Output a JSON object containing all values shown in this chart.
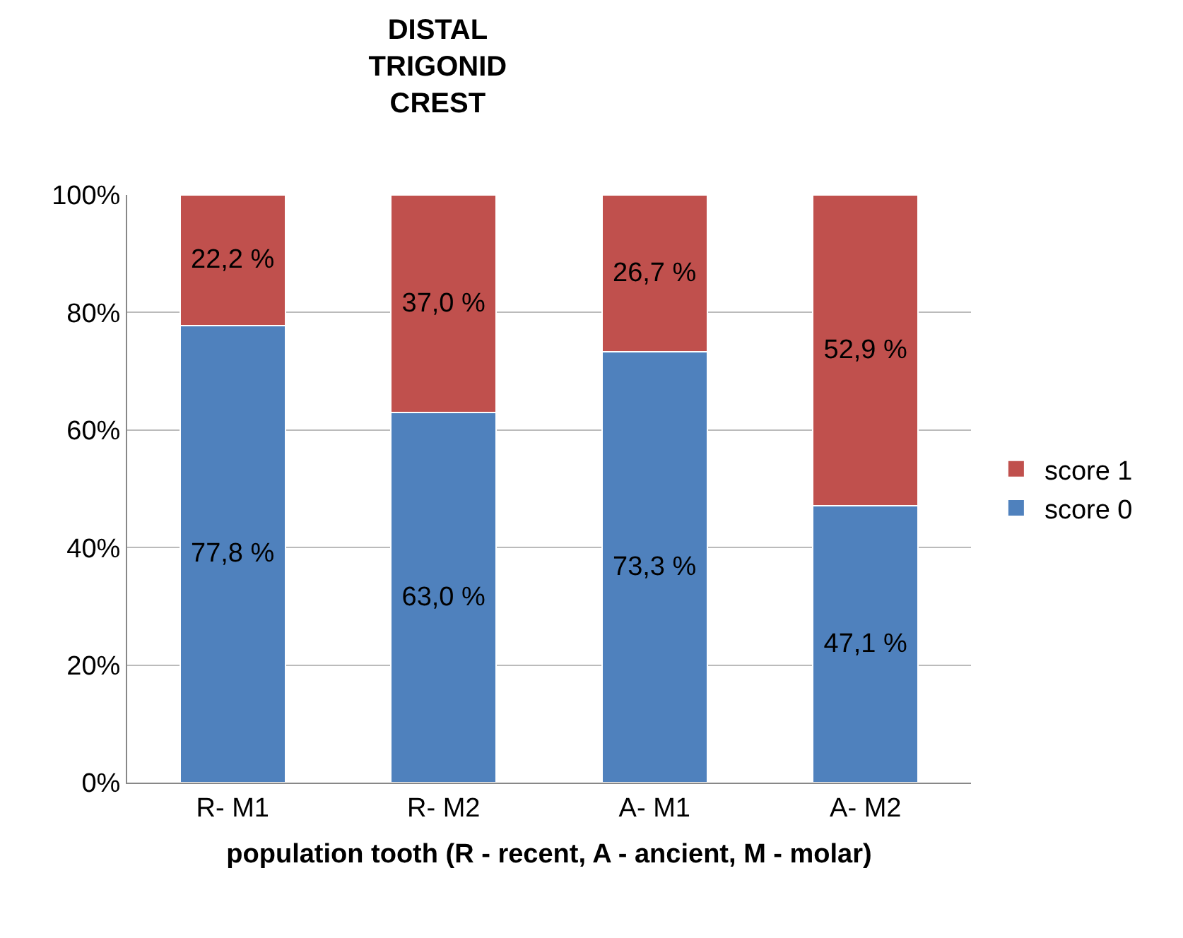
{
  "chart_data": {
    "type": "bar",
    "title": "DISTAL\nTRIGONID\nCREST",
    "xlabel": "population tooth (R - recent, A - ancient, M - molar)",
    "categories": [
      "R- M1",
      "R- M2",
      "A- M1",
      "A- M2"
    ],
    "stacked": true,
    "series": [
      {
        "name": "score 0",
        "color": "#4f81bd",
        "values": [
          77.8,
          63.0,
          73.3,
          47.1
        ],
        "value_labels": [
          "77,8 %",
          "63,0 %",
          "73,3 %",
          "47,1 %"
        ]
      },
      {
        "name": "score 1",
        "color": "#c0504d",
        "values": [
          22.2,
          37.0,
          26.7,
          52.9
        ],
        "value_labels": [
          "22,2 %",
          "37,0 %",
          "26,7 %",
          "52,9 %"
        ]
      }
    ],
    "ylim": [
      0,
      100
    ],
    "yticks": [
      {
        "value": 0,
        "label": "0%"
      },
      {
        "value": 20,
        "label": "20%"
      },
      {
        "value": 40,
        "label": "40%"
      },
      {
        "value": 60,
        "label": "60%"
      },
      {
        "value": 80,
        "label": "80%"
      },
      {
        "value": 100,
        "label": "100%"
      }
    ],
    "grid": "y",
    "legend": "right"
  }
}
